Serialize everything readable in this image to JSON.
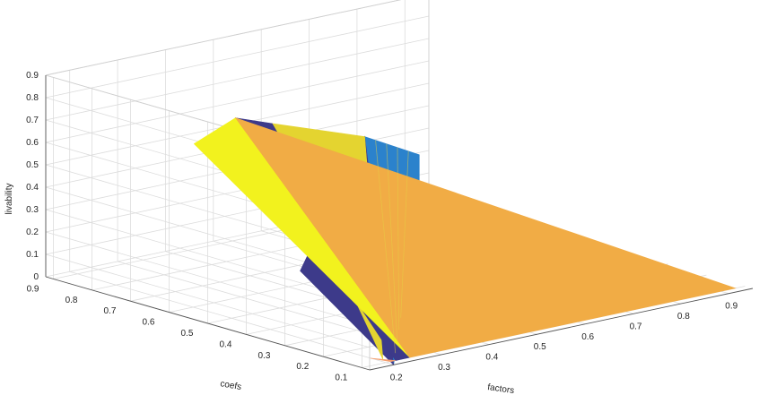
{
  "chart_data": {
    "type": "surface3d",
    "title": "",
    "xlabel": "factors",
    "ylabel": "coefs",
    "zlabel": "livability",
    "xlim": [
      0.15,
      0.95
    ],
    "ylim": [
      0.08,
      0.92
    ],
    "zlim": [
      0,
      0.9
    ],
    "x_ticks": [
      "0.2",
      "0.3",
      "0.4",
      "0.5",
      "0.6",
      "0.7",
      "0.8",
      "0.9"
    ],
    "y_ticks": [
      "0.1",
      "0.2",
      "0.3",
      "0.4",
      "0.5",
      "0.6",
      "0.7",
      "0.8",
      "0.9"
    ],
    "z_ticks": [
      "0",
      "0.1",
      "0.2",
      "0.3",
      "0.4",
      "0.5",
      "0.6",
      "0.7",
      "0.8",
      "0.9"
    ],
    "grid": true,
    "colors": {
      "blue": "#2b82cc",
      "navy": "#3d3a8a",
      "yellow": "#e4d430",
      "bright_yellow": "#f2f21e",
      "orange": "#f1ac45",
      "salmon": "#f5a070"
    },
    "faces": [
      {
        "color": "blue",
        "vertices": [
          [
            0.93,
            0.92,
            0.19
          ],
          [
            0.51,
            0.54,
            0.65
          ],
          [
            0.2,
            0.08,
            0.0
          ],
          [
            0.93,
            0.92,
            0.0
          ]
        ]
      },
      {
        "color": "navy",
        "vertices": [
          [
            0.51,
            0.54,
            0.65
          ],
          [
            0.2,
            0.08,
            0.0
          ],
          [
            0.48,
            0.67,
            0.0
          ]
        ]
      },
      {
        "color": "yellow",
        "vertices": [
          [
            0.51,
            0.54,
            0.65
          ],
          [
            0.22,
            0.42,
            0.9
          ],
          [
            0.21,
            0.12,
            0.0
          ]
        ]
      },
      {
        "color": "navy",
        "vertices": [
          [
            0.22,
            0.42,
            0.9
          ],
          [
            0.2,
            0.49,
            0.9
          ],
          [
            0.22,
            0.1,
            0.0
          ],
          [
            0.25,
            0.1,
            0.0
          ]
        ]
      },
      {
        "color": "bright_yellow",
        "vertices": [
          [
            0.2,
            0.49,
            0.9
          ],
          [
            0.21,
            0.61,
            0.72
          ],
          [
            0.25,
            0.1,
            0.0
          ]
        ]
      },
      {
        "color": "orange",
        "vertices": [
          [
            0.2,
            0.49,
            0.9
          ],
          [
            0.25,
            0.1,
            0.0
          ],
          [
            0.93,
            0.1,
            0.0
          ],
          [
            0.2,
            0.49,
            0.9
          ]
        ]
      },
      {
        "color": "salmon",
        "vertices": [
          [
            0.2,
            0.14,
            0.0
          ],
          [
            0.21,
            0.1,
            0.0
          ],
          [
            0.22,
            0.1,
            0.0
          ]
        ]
      }
    ]
  }
}
